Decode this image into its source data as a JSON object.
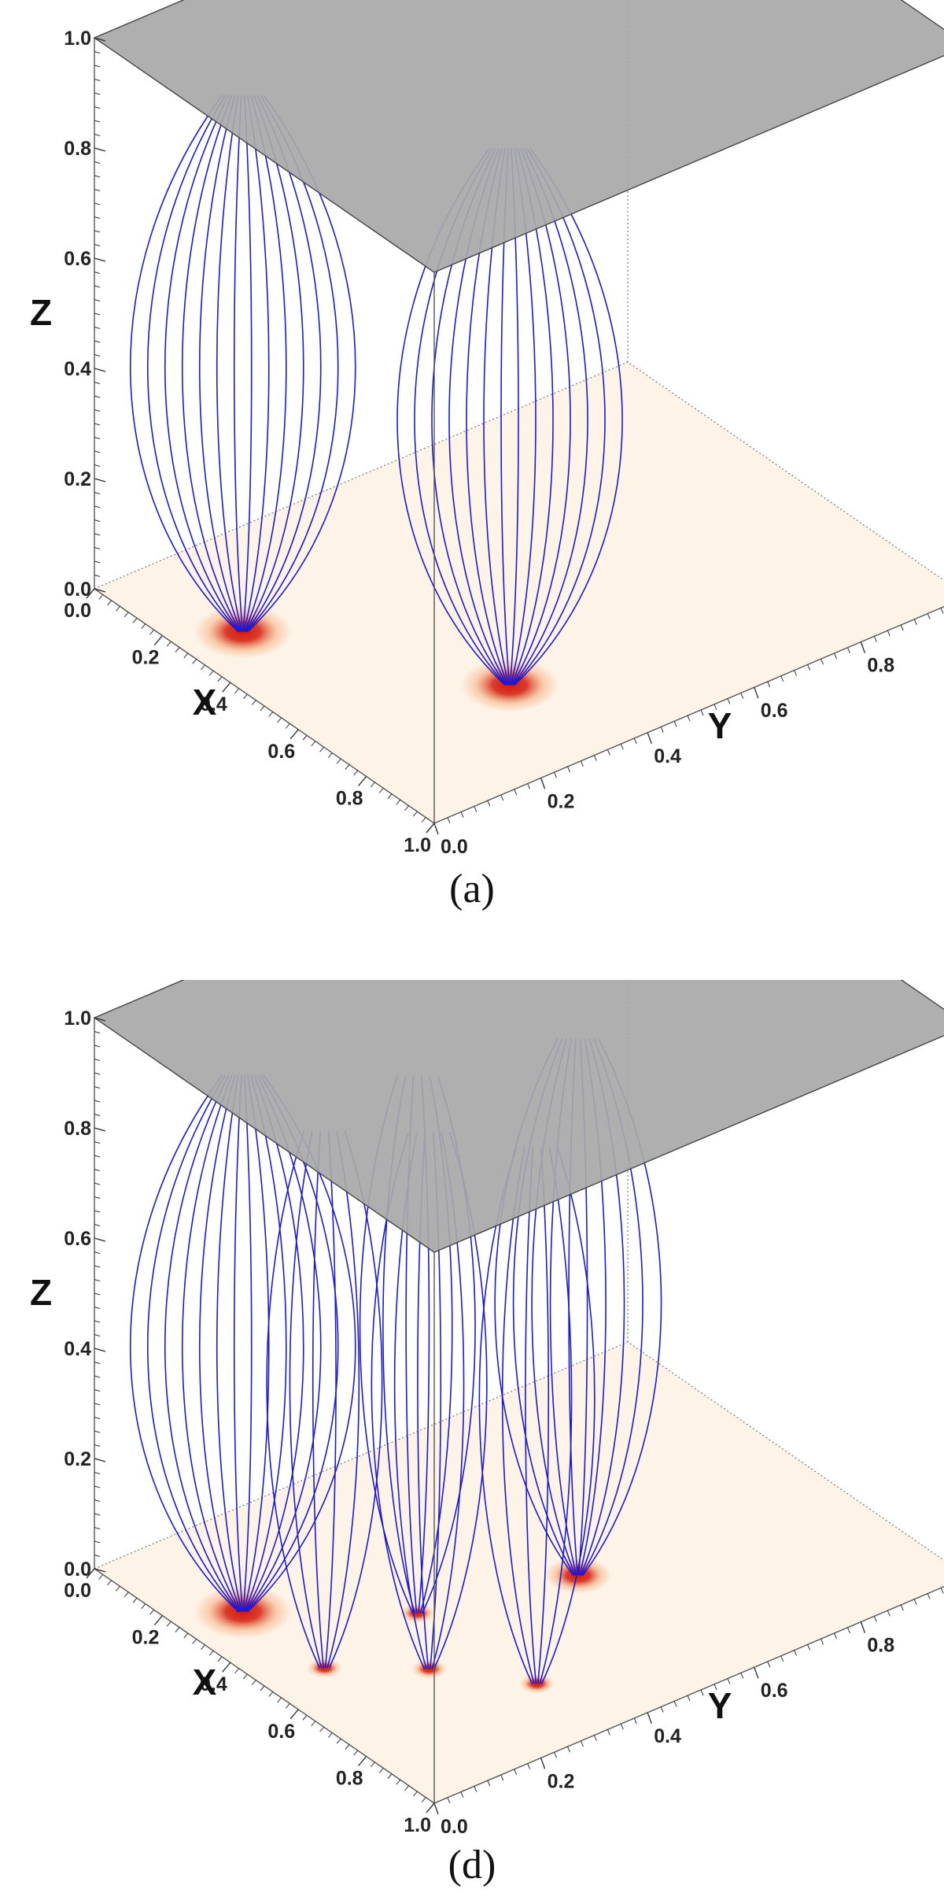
{
  "panels": [
    {
      "caption": "(a)",
      "z_axis": {
        "title": "Z",
        "ticks": [
          "1.0",
          "0.8",
          "0.6",
          "0.4",
          "0.2",
          "0.0"
        ]
      },
      "x_axis": {
        "title": "X",
        "ticks": [
          "0.0",
          "0.2",
          "0.4",
          "0.6",
          "0.8",
          "1.0"
        ]
      },
      "y_axis": {
        "title": "Y",
        "ticks": [
          "0.0",
          "0.2",
          "0.4",
          "0.6",
          "0.8",
          "1.0"
        ]
      },
      "footpoints": [
        {
          "x": 0.28,
          "y": 0.1,
          "strength": "strong"
        },
        {
          "x": 0.72,
          "y": 0.32,
          "strength": "strong"
        }
      ]
    },
    {
      "caption": "(d)",
      "z_axis": {
        "title": "Z",
        "ticks": [
          "1.0",
          "0.8",
          "0.6",
          "0.4",
          "0.2",
          "0.0"
        ]
      },
      "x_axis": {
        "title": "X",
        "ticks": [
          "0.0",
          "0.2",
          "0.4",
          "0.6",
          "0.8",
          "1.0"
        ]
      },
      "y_axis": {
        "title": "Y",
        "ticks": [
          "0.0",
          "0.2",
          "0.4",
          "0.6",
          "0.8",
          "1.0"
        ]
      },
      "footpoints": [
        {
          "x": 0.28,
          "y": 0.1,
          "strength": "strong"
        },
        {
          "x": 0.52,
          "y": 0.1,
          "strength": "weak"
        },
        {
          "x": 0.64,
          "y": 0.22,
          "strength": "weak"
        },
        {
          "x": 0.48,
          "y": 0.3,
          "strength": "weak"
        },
        {
          "x": 0.8,
          "y": 0.32,
          "strength": "weak"
        },
        {
          "x": 0.56,
          "y": 0.55,
          "strength": "medium"
        }
      ]
    }
  ],
  "colors": {
    "field_line": "#1a1ad8",
    "top_plane": "#a8a8a8",
    "bottom_plane": "#fdf3e7",
    "footpoint_core": "#d41a0a",
    "footpoint_glow": "#f6a873"
  }
}
